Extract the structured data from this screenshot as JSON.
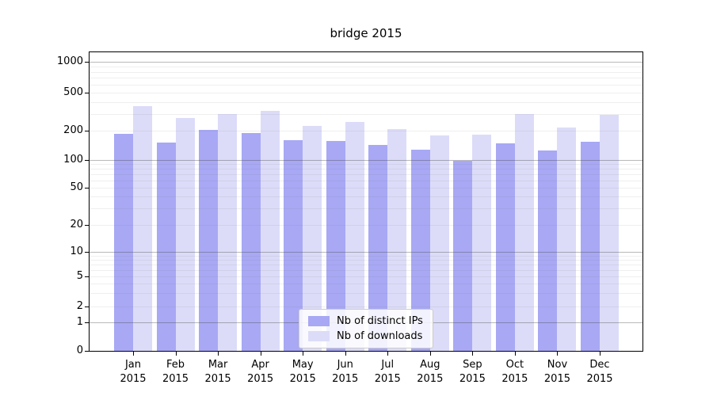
{
  "chart_data": {
    "type": "bar",
    "title": "bridge 2015",
    "scale": "symlog",
    "grid": true,
    "legend_position": "lower center",
    "categories": [
      "Jan",
      "Feb",
      "Mar",
      "Apr",
      "May",
      "Jun",
      "Jul",
      "Aug",
      "Sep",
      "Oct",
      "Nov",
      "Dec"
    ],
    "year_label": "2015",
    "series": [
      {
        "name": "Nb of distinct IPs",
        "color": "#a8a8f5",
        "values": [
          185,
          150,
          205,
          190,
          160,
          157,
          142,
          127,
          98,
          148,
          125,
          153
        ]
      },
      {
        "name": "Nb of downloads",
        "color": "#dcdcf9",
        "values": [
          360,
          270,
          300,
          320,
          225,
          245,
          207,
          178,
          182,
          300,
          215,
          295
        ]
      }
    ],
    "y_ticks": [
      0,
      1,
      2,
      5,
      10,
      20,
      50,
      100,
      200,
      500,
      1000
    ],
    "ylim": [
      0,
      1400
    ],
    "xlabel": "",
    "ylabel": ""
  }
}
